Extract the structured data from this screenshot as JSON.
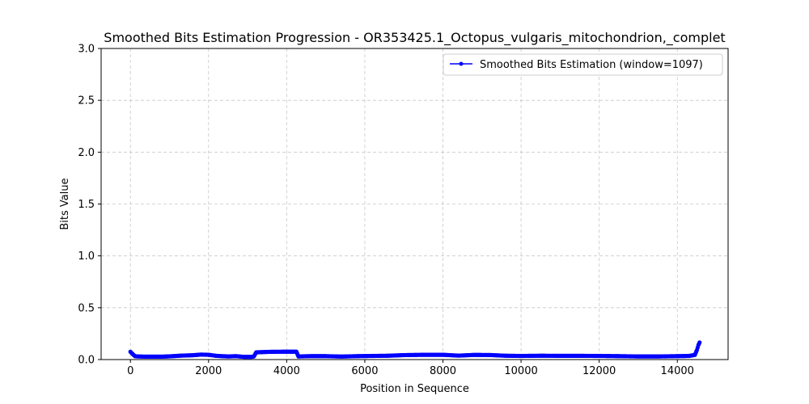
{
  "chart_data": {
    "type": "line",
    "title": "Smoothed Bits Estimation Progression - OR353425.1_Octopus_vulgaris_mitochondrion,_complet",
    "xlabel": "Position in Sequence",
    "ylabel": "Bits Value",
    "xlim": [
      -750,
      15300
    ],
    "ylim": [
      0,
      3.0
    ],
    "xticks": [
      0,
      2000,
      4000,
      6000,
      8000,
      10000,
      12000,
      14000
    ],
    "yticks": [
      0.0,
      0.5,
      1.0,
      1.5,
      2.0,
      2.5,
      3.0
    ],
    "xtick_labels": [
      "0",
      "2000",
      "4000",
      "6000",
      "8000",
      "10000",
      "12000",
      "14000"
    ],
    "ytick_labels": [
      "0.0",
      "0.5",
      "1.0",
      "1.5",
      "2.0",
      "2.5",
      "3.0"
    ],
    "grid": true,
    "legend_position": "top-right",
    "series": [
      {
        "name": "Smoothed Bits Estimation (window=1097)",
        "color": "#0000ff",
        "marker": "circle",
        "points": [
          [
            0,
            0.075
          ],
          [
            40,
            0.06
          ],
          [
            80,
            0.045
          ],
          [
            120,
            0.032
          ],
          [
            200,
            0.03
          ],
          [
            400,
            0.028
          ],
          [
            800,
            0.028
          ],
          [
            1000,
            0.031
          ],
          [
            1300,
            0.038
          ],
          [
            1600,
            0.042
          ],
          [
            1800,
            0.048
          ],
          [
            2000,
            0.046
          ],
          [
            2200,
            0.036
          ],
          [
            2500,
            0.03
          ],
          [
            2700,
            0.033
          ],
          [
            2900,
            0.026
          ],
          [
            3100,
            0.026
          ],
          [
            3160,
            0.03
          ],
          [
            3220,
            0.07
          ],
          [
            3600,
            0.075
          ],
          [
            4000,
            0.076
          ],
          [
            4250,
            0.076
          ],
          [
            4300,
            0.03
          ],
          [
            4600,
            0.033
          ],
          [
            5000,
            0.033
          ],
          [
            5400,
            0.029
          ],
          [
            5800,
            0.033
          ],
          [
            6200,
            0.035
          ],
          [
            6600,
            0.037
          ],
          [
            7000,
            0.043
          ],
          [
            7500,
            0.046
          ],
          [
            8000,
            0.046
          ],
          [
            8400,
            0.038
          ],
          [
            8800,
            0.045
          ],
          [
            9200,
            0.044
          ],
          [
            9600,
            0.037
          ],
          [
            10000,
            0.035
          ],
          [
            10500,
            0.037
          ],
          [
            11000,
            0.036
          ],
          [
            11500,
            0.036
          ],
          [
            12000,
            0.035
          ],
          [
            12500,
            0.033
          ],
          [
            13000,
            0.03
          ],
          [
            13500,
            0.03
          ],
          [
            14000,
            0.033
          ],
          [
            14300,
            0.035
          ],
          [
            14450,
            0.045
          ],
          [
            14500,
            0.09
          ],
          [
            14540,
            0.14
          ],
          [
            14570,
            0.165
          ]
        ]
      }
    ]
  }
}
